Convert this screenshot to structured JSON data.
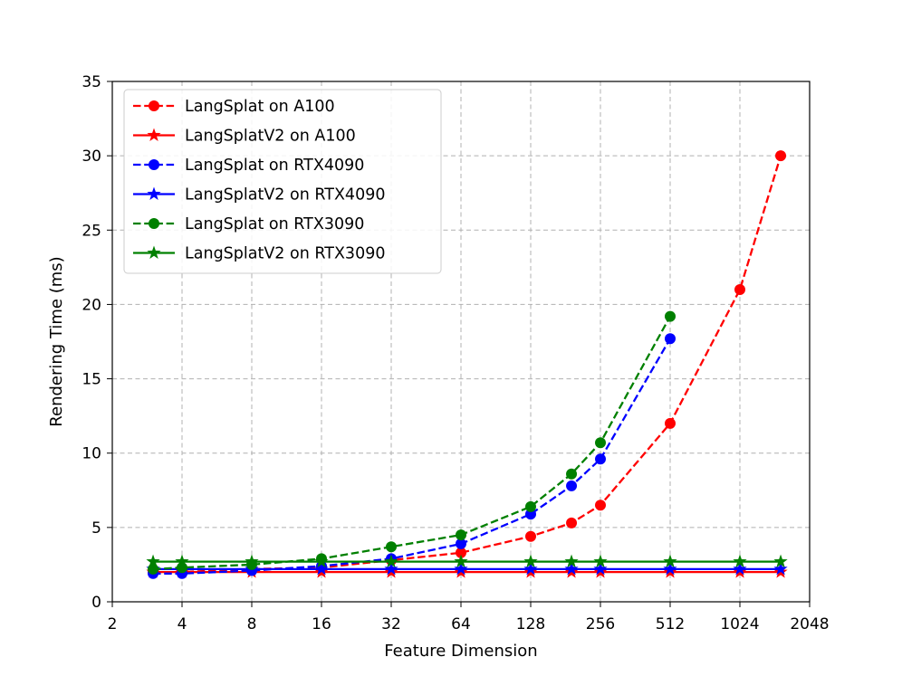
{
  "chart_data": {
    "type": "line",
    "xlabel": "Feature Dimension",
    "ylabel": "Rendering Time (ms)",
    "x_scale": "log2",
    "xlim": [
      2,
      2048
    ],
    "ylim": [
      0,
      35
    ],
    "x_ticks": [
      2,
      4,
      8,
      16,
      32,
      64,
      128,
      256,
      512,
      1024,
      2048
    ],
    "y_ticks": [
      0,
      5,
      10,
      15,
      20,
      25,
      30,
      35
    ],
    "grid": true,
    "legend_position": "top-left",
    "series": [
      {
        "name": "LangSplat on A100",
        "color": "#ff0000",
        "linestyle": "dashed",
        "marker": "circle",
        "x": [
          3,
          4,
          8,
          16,
          32,
          64,
          128,
          192,
          256,
          512,
          1024,
          1536
        ],
        "y": [
          2.0,
          2.0,
          2.2,
          2.3,
          2.8,
          3.3,
          4.4,
          5.3,
          6.5,
          12.0,
          21.0,
          30.0
        ]
      },
      {
        "name": "LangSplatV2 on A100",
        "color": "#ff0000",
        "linestyle": "solid",
        "marker": "star",
        "x": [
          3,
          4,
          8,
          16,
          32,
          64,
          128,
          192,
          256,
          512,
          1024,
          1536
        ],
        "y": [
          2.0,
          2.0,
          2.0,
          2.0,
          2.0,
          2.0,
          2.0,
          2.0,
          2.0,
          2.0,
          2.0,
          2.0
        ]
      },
      {
        "name": "LangSplat on RTX4090",
        "color": "#0000ff",
        "linestyle": "dashed",
        "marker": "circle",
        "x": [
          3,
          4,
          8,
          16,
          32,
          64,
          128,
          192,
          256,
          512
        ],
        "y": [
          1.9,
          1.9,
          2.1,
          2.4,
          2.9,
          3.9,
          5.9,
          7.8,
          9.6,
          17.7
        ]
      },
      {
        "name": "LangSplatV2 on RTX4090",
        "color": "#0000ff",
        "linestyle": "solid",
        "marker": "star",
        "x": [
          3,
          4,
          8,
          16,
          32,
          64,
          128,
          192,
          256,
          512,
          1024,
          1536
        ],
        "y": [
          2.2,
          2.2,
          2.2,
          2.2,
          2.2,
          2.2,
          2.2,
          2.2,
          2.2,
          2.2,
          2.2,
          2.2
        ]
      },
      {
        "name": "LangSplat on RTX3090",
        "color": "#008000",
        "linestyle": "dashed",
        "marker": "circle",
        "x": [
          3,
          4,
          8,
          16,
          32,
          64,
          128,
          192,
          256,
          512
        ],
        "y": [
          2.2,
          2.3,
          2.5,
          2.9,
          3.7,
          4.5,
          6.4,
          8.6,
          10.7,
          19.2
        ]
      },
      {
        "name": "LangSplatV2 on RTX3090",
        "color": "#008000",
        "linestyle": "solid",
        "marker": "star",
        "x": [
          3,
          4,
          8,
          16,
          32,
          64,
          128,
          192,
          256,
          512,
          1024,
          1536
        ],
        "y": [
          2.7,
          2.7,
          2.7,
          2.7,
          2.7,
          2.7,
          2.7,
          2.7,
          2.7,
          2.7,
          2.7,
          2.7
        ]
      }
    ]
  }
}
